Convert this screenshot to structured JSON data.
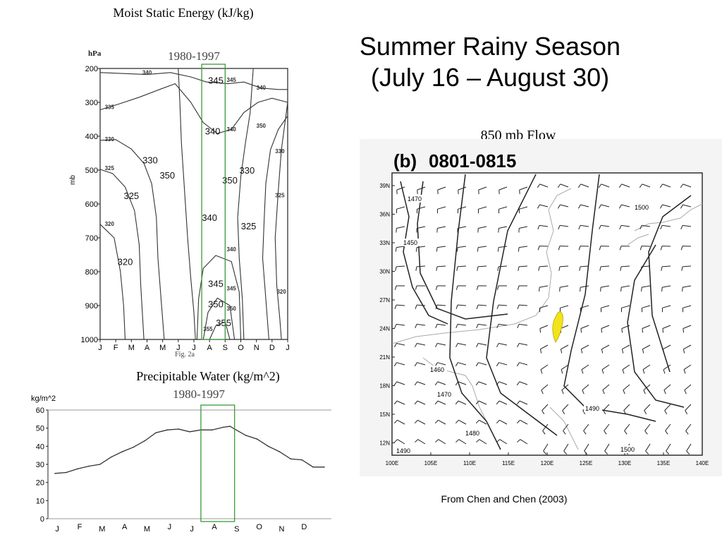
{
  "slide": {
    "title_line1": "Summer Rainy Season",
    "title_line2": "(July 16 – August 30)",
    "source_note": "From Chen and Chen (2003)"
  },
  "chart_data": [
    {
      "type": "heatmap",
      "variant": "contour",
      "caption": "Moist Static Energy (kJ/kg)",
      "title": "1980-1997",
      "ylabel": "mb",
      "yunit": "hPa",
      "figure_label": "Fig. 2a",
      "months": [
        "J",
        "F",
        "M",
        "A",
        "M",
        "J",
        "J",
        "A",
        "S",
        "O",
        "N",
        "D",
        "J"
      ],
      "pressure_levels": [
        200,
        300,
        400,
        500,
        600,
        700,
        800,
        900,
        1000
      ],
      "ylim": [
        1000,
        200
      ],
      "highlight": {
        "from": "Jul 16",
        "to": "Aug 30",
        "color": "#3a9a3a"
      },
      "contour_labels_large": [
        {
          "month": 7.4,
          "level": 245,
          "value": "345"
        },
        {
          "month": 7.2,
          "level": 395,
          "value": "340"
        },
        {
          "month": 3.2,
          "level": 480,
          "value": "330"
        },
        {
          "month": 4.3,
          "level": 525,
          "value": "350"
        },
        {
          "month": 2.0,
          "level": 585,
          "value": "325"
        },
        {
          "month": 9.4,
          "level": 510,
          "value": "330"
        },
        {
          "month": 8.3,
          "level": 540,
          "value": "350"
        },
        {
          "month": 9.5,
          "level": 675,
          "value": "325"
        },
        {
          "month": 7.0,
          "level": 650,
          "value": "340"
        },
        {
          "month": 1.6,
          "level": 780,
          "value": "320"
        },
        {
          "month": 7.4,
          "level": 845,
          "value": "345"
        },
        {
          "month": 7.4,
          "level": 905,
          "value": "350"
        },
        {
          "month": 7.9,
          "level": 960,
          "value": "355"
        }
      ],
      "contour_labels_small": [
        {
          "month": 3.0,
          "level": 218,
          "value": "340"
        },
        {
          "month": 8.4,
          "level": 240,
          "value": "345"
        },
        {
          "month": 10.3,
          "level": 262,
          "value": "340"
        },
        {
          "month": 0.6,
          "level": 320,
          "value": "335"
        },
        {
          "month": 8.4,
          "level": 385,
          "value": "340"
        },
        {
          "month": 10.3,
          "level": 375,
          "value": "350"
        },
        {
          "month": 0.6,
          "level": 415,
          "value": "330"
        },
        {
          "month": 11.5,
          "level": 450,
          "value": "330"
        },
        {
          "month": 0.6,
          "level": 500,
          "value": "325"
        },
        {
          "month": 11.5,
          "level": 580,
          "value": "325"
        },
        {
          "month": 0.6,
          "level": 665,
          "value": "320"
        },
        {
          "month": 8.4,
          "level": 740,
          "value": "340"
        },
        {
          "month": 8.4,
          "level": 855,
          "value": "345"
        },
        {
          "month": 8.4,
          "level": 915,
          "value": "350"
        },
        {
          "month": 6.9,
          "level": 975,
          "value": "355"
        },
        {
          "month": 11.6,
          "level": 865,
          "value": "320"
        }
      ]
    },
    {
      "type": "line",
      "caption": "Precipitable Water (kg/m^2)",
      "title": "1980-1997",
      "ylabel": "kg/m^2",
      "months": [
        "J",
        "F",
        "M",
        "A",
        "M",
        "J",
        "J",
        "A",
        "S",
        "O",
        "N",
        "D"
      ],
      "yticks": [
        0,
        10,
        20,
        30,
        40,
        50,
        60
      ],
      "ylim": [
        0,
        60
      ],
      "highlight": {
        "from": "Jul 16",
        "to": "Aug 30",
        "color": "#3a9a3a"
      },
      "series": [
        {
          "x": [
            0.0,
            0.5,
            1.0,
            1.5,
            2.0,
            2.5,
            3.0,
            3.5,
            4.0,
            4.5,
            5.0,
            5.5,
            6.0,
            6.5,
            7.0,
            7.5,
            7.8,
            8.0,
            8.5,
            9.0,
            9.5,
            10.0,
            10.5,
            11.0,
            11.5,
            12.0
          ],
          "values": [
            25,
            25.5,
            27.5,
            29,
            30,
            34,
            37,
            39.5,
            43,
            47.5,
            49,
            49.5,
            48,
            49,
            49,
            50.5,
            51,
            49.5,
            46,
            44,
            40,
            37,
            33,
            32.5,
            28.5,
            28.5
          ]
        }
      ]
    },
    {
      "type": "other",
      "variant": "wind-barb map",
      "caption": "850 mb Flow",
      "panel_label": "(b)",
      "panel_period": "0801-0815",
      "lat_ticks": [
        "39N",
        "36N",
        "33N",
        "30N",
        "27N",
        "24N",
        "21N",
        "18N",
        "15N",
        "12N"
      ],
      "lon_ticks": [
        "100E",
        "105E",
        "110E",
        "115E",
        "120E",
        "125E",
        "130E",
        "135E",
        "140E"
      ],
      "contour_labels": [
        "1470",
        "1450",
        "1500",
        "1460",
        "1470",
        "1490",
        "1480",
        "1490",
        "1500"
      ],
      "highlight_color": "#f2e31a"
    }
  ]
}
